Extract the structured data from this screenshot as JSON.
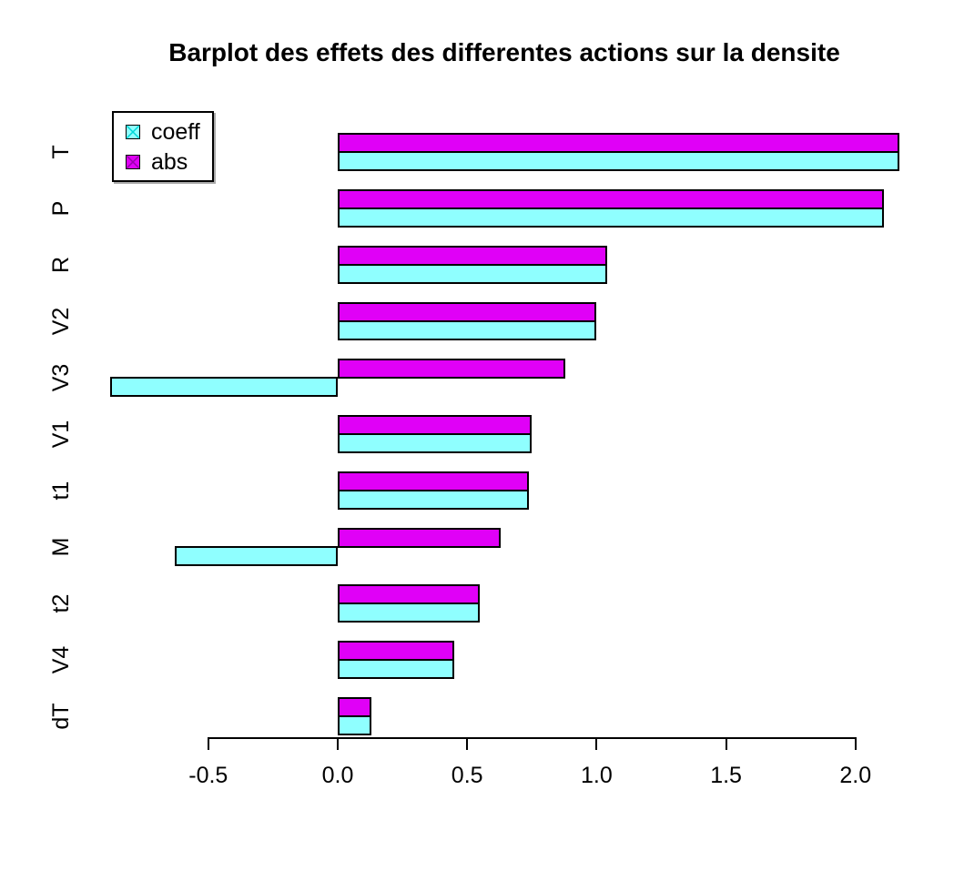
{
  "chart_data": {
    "type": "bar",
    "orientation": "horizontal",
    "title": "Barplot des effets des differentes actions sur la densite",
    "categories": [
      "T",
      "P",
      "R",
      "V2",
      "V3",
      "V1",
      "t1",
      "M",
      "t2",
      "V4",
      "dT"
    ],
    "series": [
      {
        "name": "coeff",
        "color": "#8FFFFF",
        "hatch_color": "#00D8D8",
        "values": [
          2.17,
          2.11,
          1.04,
          1.0,
          -0.88,
          0.75,
          0.74,
          -0.63,
          0.55,
          0.45,
          0.13
        ]
      },
      {
        "name": "abs",
        "color": "#E000F7",
        "hatch_color": "#9A00AC",
        "values": [
          2.17,
          2.11,
          1.04,
          1.0,
          0.88,
          0.75,
          0.74,
          0.63,
          0.55,
          0.45,
          0.13
        ]
      }
    ],
    "x_ticks": [
      "-0.5",
      "0.0",
      "0.5",
      "1.0",
      "1.5",
      "2.0"
    ],
    "x_tick_values": [
      -0.5,
      0.0,
      0.5,
      1.0,
      1.5,
      2.0
    ],
    "xlim": [
      -0.9,
      2.25
    ],
    "grid": false,
    "legend": {
      "position": "top-left",
      "entries": [
        "coeff",
        "abs"
      ]
    },
    "colors": {
      "bar_border": "#000000",
      "axis": "#000000",
      "background": "#FFFFFF"
    }
  }
}
